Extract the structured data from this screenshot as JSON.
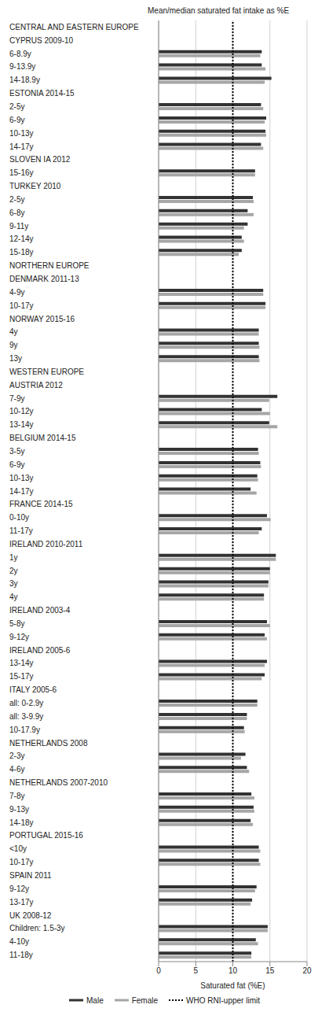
{
  "chart_data": {
    "type": "bar",
    "orientation": "horizontal",
    "title": "Mean/median saturated fat intake as %E",
    "x_label": "Saturated fat (%E)",
    "categories": [
      "CENTRAL AND EASTERN EUROPE",
      "CYPRUS 2009-10",
      "6-8.9y",
      "9-13.9y",
      "14-18.9y",
      "ESTONIA 2014-15",
      "2-5y",
      "6-9y",
      "10-13y",
      "14-17y",
      "SLOVEN IA 2012",
      "15-16y",
      "TURKEY 2010",
      "2-5y",
      "6-8y",
      "9-11y",
      "12-14y",
      "15-18y",
      "NORTHERN EUROPE",
      "DENMARK 2011-13",
      "4-9y",
      "10-17y",
      "NORWAY 2015-16",
      "4y",
      "9y",
      "13y",
      "WESTERN EUROPE",
      "AUSTRIA 2012",
      "7-9y",
      "10-12y",
      "13-14y",
      "BELGIUM 2014-15",
      "3-5y",
      "6-9y",
      "10-13y",
      "14-17y",
      "FRANCE 2014-15",
      "0-10y",
      "11-17y",
      "IRELAND 2010-2011",
      "1y",
      "2y",
      "3y",
      "4y",
      "IRELAND 2003-4",
      "5-8y",
      "9-12y",
      "IRELAND 2005-6",
      "13-14y",
      "15-17y",
      "ITALY 2005-6",
      "all: 0-2.9y",
      "all: 3-9.9y",
      "10-17.9y",
      "NETHERLANDS 2008",
      "2-3y",
      "4-6y",
      "NETHERLANDS 2007-2010",
      "7-8y",
      "9-13y",
      "14-18y",
      "PORTUGAL 2015-16",
      "<10y",
      "10-17y",
      "SPAIN 2011",
      "9-12y",
      "13-17y",
      "UK 2008-12",
      "Children: 1.5-3y",
      "4-10y",
      "11-18y"
    ],
    "series": [
      {
        "name": "Male",
        "color": "#333333",
        "values": [
          null,
          null,
          13.9,
          13.9,
          15.2,
          null,
          13.8,
          14.5,
          14.4,
          13.8,
          null,
          13.0,
          null,
          12.7,
          12.0,
          12.0,
          11.2,
          11.2,
          null,
          null,
          14.1,
          14.4,
          null,
          13.5,
          13.5,
          13.5,
          null,
          null,
          16.0,
          13.9,
          14.9,
          null,
          13.4,
          13.7,
          13.3,
          12.4,
          null,
          14.6,
          13.9,
          null,
          15.8,
          15.0,
          14.8,
          14.2,
          null,
          14.6,
          14.3,
          null,
          14.6,
          14.3,
          null,
          13.3,
          11.9,
          11.5,
          null,
          11.7,
          11.9,
          null,
          12.5,
          12.8,
          12.4,
          null,
          13.5,
          13.5,
          null,
          13.2,
          12.6,
          null,
          14.7,
          13.1,
          12.5
        ]
      },
      {
        "name": "Female",
        "color": "#a6a6a6",
        "values": [
          null,
          null,
          13.7,
          14.4,
          14.3,
          null,
          14.1,
          14.3,
          14.5,
          14.1,
          null,
          13.0,
          null,
          12.8,
          12.8,
          11.5,
          11.5,
          10.8,
          null,
          null,
          14.1,
          14.4,
          null,
          13.5,
          13.6,
          13.6,
          null,
          null,
          14.9,
          15.0,
          16.0,
          null,
          13.5,
          13.8,
          13.4,
          13.2,
          null,
          15.1,
          13.5,
          null,
          15.8,
          15.0,
          14.8,
          14.2,
          null,
          15.0,
          14.6,
          null,
          14.3,
          13.9,
          null,
          13.3,
          11.9,
          11.6,
          null,
          11.1,
          12.2,
          null,
          12.9,
          12.9,
          12.7,
          null,
          13.7,
          13.7,
          null,
          13.0,
          12.4,
          null,
          14.7,
          13.4,
          12.5
        ]
      }
    ],
    "reference_line": {
      "value": 10,
      "name": "WHO RNI-upper limit",
      "color": "#000000",
      "line_style": "dotted"
    },
    "xlim": [
      0,
      20
    ],
    "xticks": [
      0,
      5,
      10,
      15,
      20
    ],
    "grid": true,
    "legend": "bottom"
  }
}
